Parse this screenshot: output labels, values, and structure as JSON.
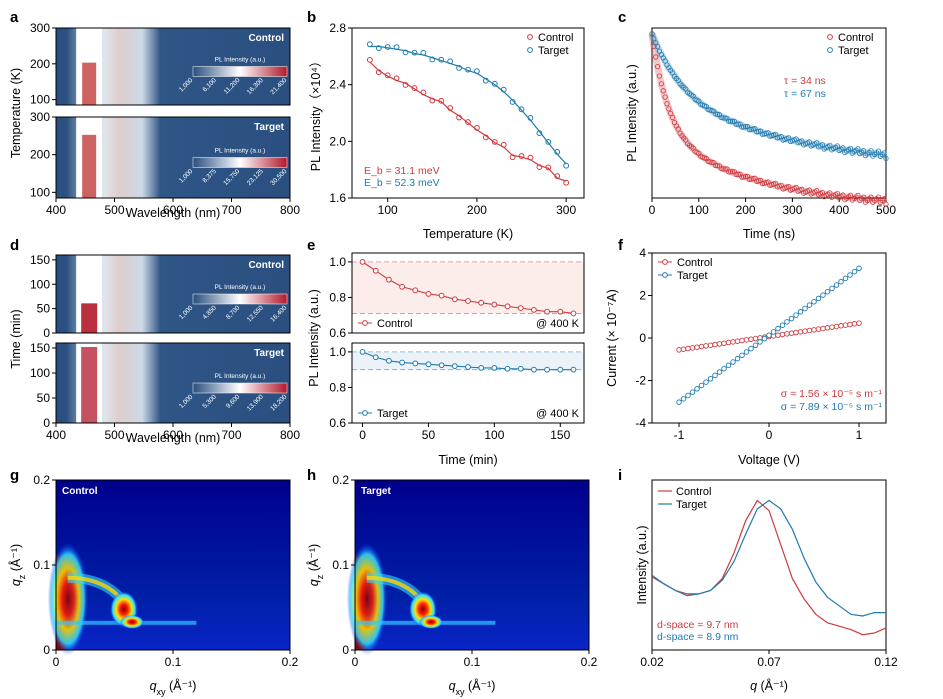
{
  "panel_letters": [
    "a",
    "b",
    "c",
    "d",
    "e",
    "f",
    "g",
    "h",
    "i"
  ],
  "colors": {
    "control": "#d03a3f",
    "target": "#1f7bb0",
    "map_base": "#2a4f80"
  },
  "chart_data": [
    {
      "id": "a",
      "type": "heatmap",
      "xlabel": "Wavelength (nm)",
      "ylabel": "Temperature (K)",
      "xlim": [
        400,
        800
      ],
      "xticks": [
        400,
        500,
        600,
        700,
        800
      ],
      "ylim": [
        85,
        300
      ],
      "yticks": [
        100,
        200,
        300
      ],
      "subpanels": [
        {
          "label": "Control",
          "peak_nm": 455,
          "colorbar_title": "PL Intensity (a.u.)",
          "colorbar_ticks": [
            "1,000",
            "6,100",
            "11,200",
            "16,300",
            "21,400"
          ]
        },
        {
          "label": "Target",
          "peak_nm": 455,
          "colorbar_title": "PL Intensity (a.u.)",
          "colorbar_ticks": [
            "1,000",
            "8,375",
            "15,750",
            "23,125",
            "30,500"
          ]
        }
      ]
    },
    {
      "id": "b",
      "type": "scatter",
      "xlabel": "Temperature (K)",
      "ylabel": "PL Intensity（×10⁴）",
      "xlim": [
        60,
        320
      ],
      "xticks": [
        100,
        200,
        300
      ],
      "ylim": [
        1.6,
        2.8
      ],
      "yticks": [
        1.6,
        2.0,
        2.4,
        2.8
      ],
      "legend_position": "top-right",
      "series": [
        {
          "name": "Control",
          "annotation": "E_b = 31.1 meV",
          "x": [
            80,
            90,
            100,
            110,
            120,
            130,
            140,
            150,
            160,
            170,
            180,
            190,
            200,
            210,
            220,
            230,
            240,
            250,
            260,
            270,
            280,
            290,
            300
          ],
          "y": [
            2.56,
            2.5,
            2.46,
            2.43,
            2.41,
            2.37,
            2.33,
            2.3,
            2.28,
            2.22,
            2.18,
            2.13,
            2.08,
            2.04,
            1.99,
            1.96,
            1.9,
            1.89,
            1.87,
            1.83,
            1.81,
            1.74,
            1.72
          ]
        },
        {
          "name": "Target",
          "annotation": "E_b = 52.3 meV",
          "x": [
            80,
            90,
            100,
            110,
            120,
            130,
            140,
            150,
            160,
            170,
            180,
            190,
            200,
            210,
            220,
            230,
            240,
            250,
            260,
            270,
            280,
            290,
            300
          ],
          "y": [
            2.67,
            2.67,
            2.66,
            2.65,
            2.64,
            2.62,
            2.61,
            2.59,
            2.57,
            2.55,
            2.53,
            2.5,
            2.48,
            2.44,
            2.4,
            2.35,
            2.29,
            2.22,
            2.15,
            2.07,
            1.99,
            1.91,
            1.84
          ]
        }
      ]
    },
    {
      "id": "c",
      "type": "line",
      "xlabel": "Time (ns)",
      "ylabel": "PL Intensity (a.u.)",
      "xlim": [
        0,
        500
      ],
      "xticks": [
        0,
        100,
        200,
        300,
        400,
        500
      ],
      "legend_position": "top-right",
      "series": [
        {
          "name": "Control",
          "tau_label": "τ = 34 ns",
          "tau_ns": 34
        },
        {
          "name": "Target",
          "tau_label": "τ = 67 ns",
          "tau_ns": 67
        }
      ]
    },
    {
      "id": "d",
      "type": "heatmap",
      "xlabel": "Wavelength (nm)",
      "ylabel": "Time (min)",
      "xlim": [
        400,
        800
      ],
      "xticks": [
        400,
        500,
        600,
        700,
        800
      ],
      "ylim": [
        0,
        160
      ],
      "yticks": [
        0,
        50,
        100,
        150
      ],
      "subpanels": [
        {
          "label": "Control",
          "peak_nm": 455,
          "colorbar_title": "PL Intensity (a.u.)",
          "colorbar_ticks": [
            "1,000",
            "4,850",
            "8,700",
            "12,550",
            "16,400"
          ]
        },
        {
          "label": "Target",
          "peak_nm": 455,
          "colorbar_title": "PL Intensity (a.u.)",
          "colorbar_ticks": [
            "1,000",
            "5,300",
            "9,600",
            "13,900",
            "18,200"
          ]
        }
      ]
    },
    {
      "id": "e",
      "type": "line",
      "xlabel": "Time (min)",
      "ylabel": "PL Intensity (a.u.)",
      "xlim": [
        -8,
        168
      ],
      "xticks": [
        0,
        50,
        100,
        150
      ],
      "subpanels": [
        {
          "label": "Control",
          "condition": "@ 400 K",
          "ylim": [
            0.6,
            1.05
          ],
          "yticks": [
            0.6,
            0.8,
            1.0
          ],
          "x": [
            0,
            10,
            20,
            30,
            40,
            50,
            60,
            70,
            80,
            90,
            100,
            110,
            120,
            130,
            140,
            150,
            160
          ],
          "y": [
            1.0,
            0.95,
            0.9,
            0.86,
            0.84,
            0.82,
            0.81,
            0.79,
            0.78,
            0.77,
            0.76,
            0.75,
            0.74,
            0.73,
            0.72,
            0.72,
            0.71
          ]
        },
        {
          "label": "Target",
          "condition": "@ 400 K",
          "ylim": [
            0.6,
            1.05
          ],
          "yticks": [
            0.6,
            0.8,
            1.0
          ],
          "x": [
            0,
            10,
            20,
            30,
            40,
            50,
            60,
            70,
            80,
            90,
            100,
            110,
            120,
            130,
            140,
            150,
            160
          ],
          "y": [
            1.0,
            0.97,
            0.95,
            0.94,
            0.935,
            0.93,
            0.925,
            0.92,
            0.915,
            0.91,
            0.91,
            0.905,
            0.905,
            0.9,
            0.9,
            0.9,
            0.9
          ]
        }
      ]
    },
    {
      "id": "f",
      "type": "scatter",
      "xlabel": "Voltage (V)",
      "ylabel": "Current (× 10⁻⁷A)",
      "xlim": [
        -1.3,
        1.3
      ],
      "xticks": [
        -1,
        0,
        1
      ],
      "ylim": [
        -4,
        4
      ],
      "yticks": [
        -4,
        -2,
        0,
        2,
        4
      ],
      "legend_position": "top-left",
      "series": [
        {
          "name": "Control",
          "annotation": "σ = 1.56 × 10⁻⁵ s m⁻¹",
          "slope": 0.63,
          "intercept": 0.07
        },
        {
          "name": "Target",
          "annotation": "σ = 7.89 × 10⁻⁵ s m⁻¹",
          "slope": 3.15,
          "intercept": 0.13
        }
      ]
    },
    {
      "id": "g",
      "type": "heatmap",
      "label": "Control",
      "xlabel": "q_xy (Å⁻¹)",
      "ylabel": "q_z (Å⁻¹)",
      "xlim": [
        0,
        0.2
      ],
      "xticks": [
        "0",
        "0.1",
        "0.2"
      ],
      "ylim": [
        0,
        0.2
      ],
      "yticks": [
        "0",
        "0.1",
        "0.2"
      ]
    },
    {
      "id": "h",
      "type": "heatmap",
      "label": "Target",
      "xlabel": "q_xy (Å⁻¹)",
      "ylabel": "q_z (Å⁻¹)",
      "xlim": [
        0,
        0.2
      ],
      "xticks": [
        "0",
        "0.1",
        "0.2"
      ],
      "ylim": [
        0,
        0.2
      ],
      "yticks": [
        "0",
        "0.1",
        "0.2"
      ]
    },
    {
      "id": "i",
      "type": "line",
      "xlabel": "q (Å⁻¹)",
      "ylabel": "Intensity (a.u.)",
      "xlim": [
        0.02,
        0.12
      ],
      "xticks": [
        "0.02",
        "0.07",
        "0.12"
      ],
      "legend_position": "top-left",
      "series": [
        {
          "name": "Control",
          "annotation": "d-space = 9.7 nm",
          "x": [
            0.02,
            0.025,
            0.03,
            0.035,
            0.04,
            0.045,
            0.05,
            0.055,
            0.06,
            0.065,
            0.07,
            0.075,
            0.08,
            0.085,
            0.09,
            0.095,
            0.1,
            0.105,
            0.11,
            0.115,
            0.12
          ],
          "y": [
            0.43,
            0.39,
            0.35,
            0.33,
            0.33,
            0.35,
            0.42,
            0.57,
            0.76,
            0.88,
            0.82,
            0.62,
            0.42,
            0.3,
            0.21,
            0.16,
            0.14,
            0.12,
            0.09,
            0.1,
            0.13
          ]
        },
        {
          "name": "Target",
          "annotation": "d-space = 8.9 nm",
          "x": [
            0.02,
            0.025,
            0.03,
            0.035,
            0.04,
            0.045,
            0.05,
            0.055,
            0.06,
            0.065,
            0.07,
            0.075,
            0.08,
            0.085,
            0.09,
            0.095,
            0.1,
            0.105,
            0.11,
            0.115,
            0.12
          ],
          "y": [
            0.44,
            0.39,
            0.35,
            0.32,
            0.33,
            0.35,
            0.41,
            0.52,
            0.68,
            0.83,
            0.88,
            0.83,
            0.71,
            0.54,
            0.4,
            0.31,
            0.26,
            0.21,
            0.2,
            0.22,
            0.22
          ]
        }
      ]
    }
  ]
}
